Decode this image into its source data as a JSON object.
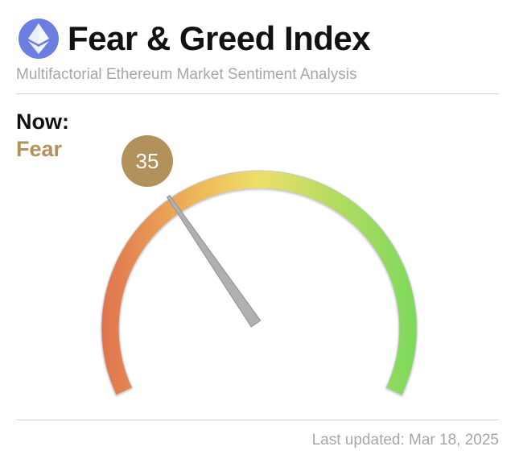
{
  "header": {
    "logo_icon": "ethereum-icon",
    "title": "Fear & Greed Index",
    "subtitle": "Multifactorial Ethereum Market Sentiment Analysis"
  },
  "status": {
    "now_label": "Now:",
    "sentiment": "Fear",
    "sentiment_color": "#b3915a"
  },
  "gauge": {
    "value": 35,
    "min": 0,
    "max": 100,
    "value_label": "35",
    "needle_color": "#b0b0b0",
    "gradient_colors": [
      "#e0724f",
      "#eeb658",
      "#eedf6a",
      "#b8dc62",
      "#7cd95c"
    ]
  },
  "footer": {
    "last_updated": "Last updated: Mar 18, 2025"
  }
}
